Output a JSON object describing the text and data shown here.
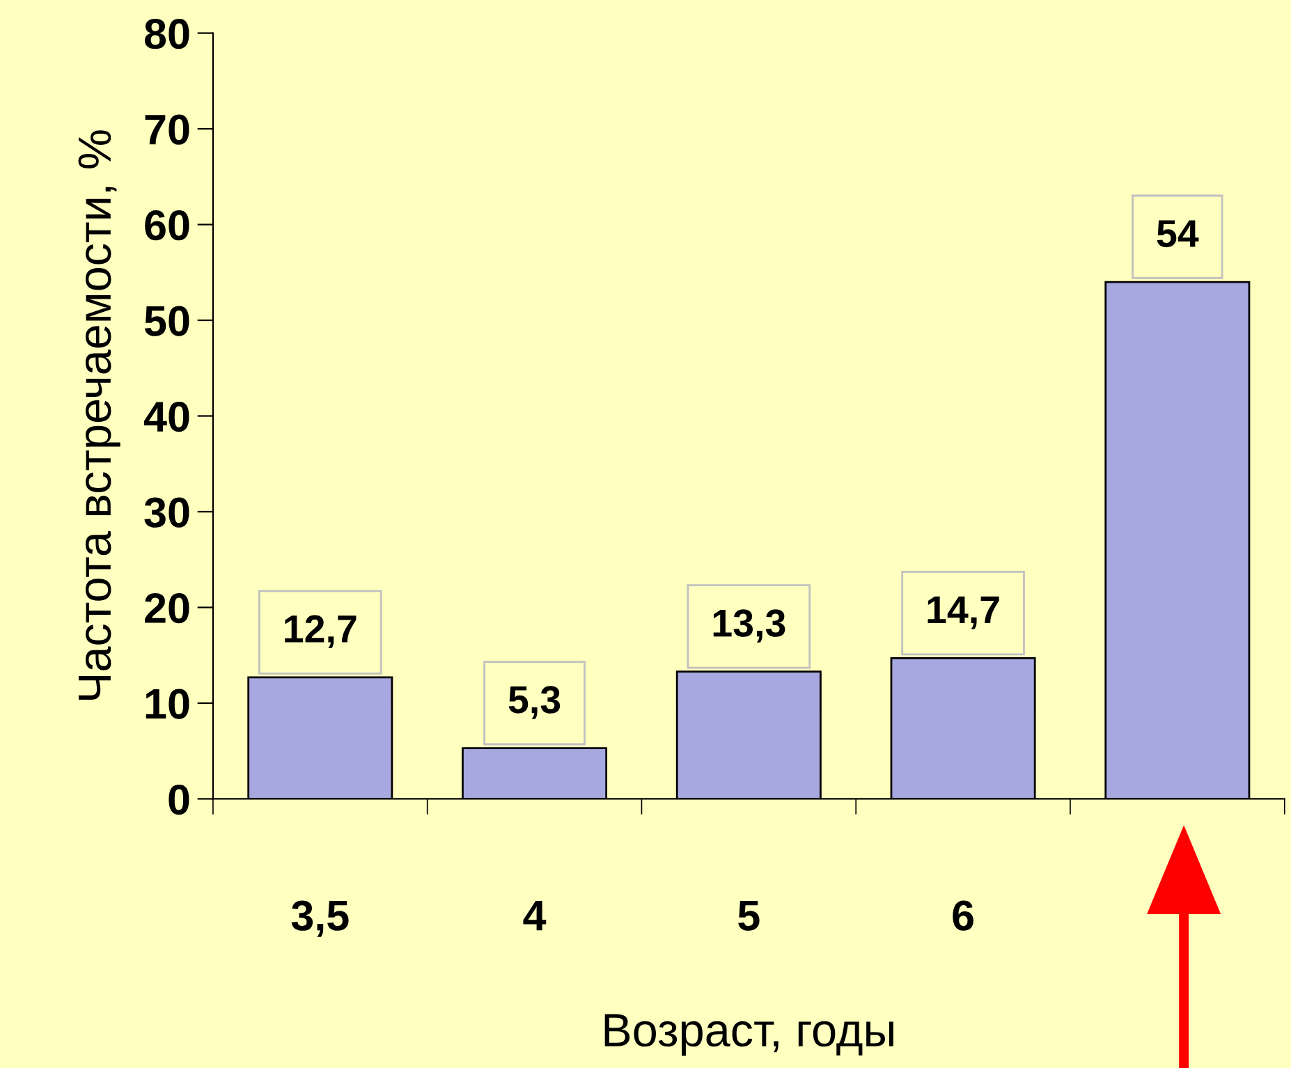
{
  "chart_data": {
    "type": "bar",
    "xlabel": "Возраст, годы",
    "ylabel": "Частота встречаемости, %",
    "categories": [
      "3,5",
      "4",
      "5",
      "6",
      null
    ],
    "values": [
      12.7,
      5.3,
      13.3,
      14.7,
      54
    ],
    "value_labels": [
      "12,7",
      "5,3",
      "13,3",
      "14,7",
      "54"
    ],
    "color": "#a8a8e0",
    "ylim": [
      0,
      80
    ],
    "yticks": [
      0,
      10,
      20,
      30,
      40,
      50,
      60,
      70,
      80
    ],
    "grid": false,
    "legend": false
  }
}
